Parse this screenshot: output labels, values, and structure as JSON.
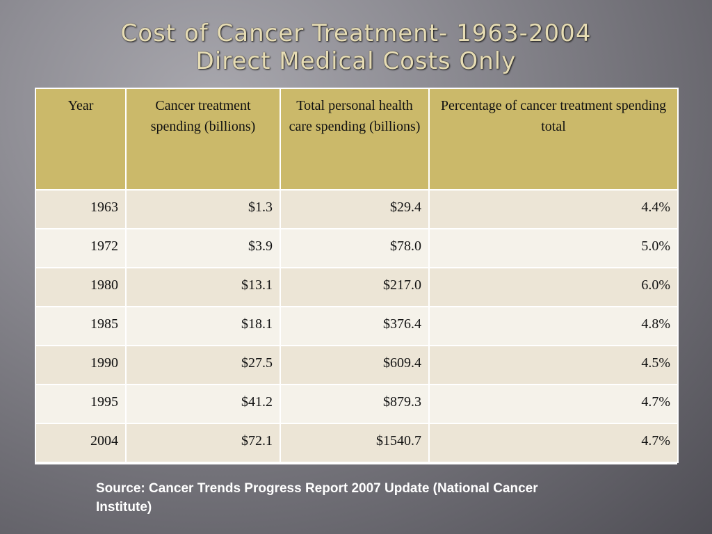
{
  "slide": {
    "title_line1": "Cost of Cancer Treatment- 1963-2004",
    "title_line2": "Direct Medical Costs Only",
    "source": "Source:  Cancer Trends Progress Report 2007 Update (National Cancer Institute)"
  },
  "table": {
    "headers": [
      "Year",
      "Cancer treatment spending (billions)",
      "Total personal health care spending (billions)",
      "Percentage of cancer treatment spending total"
    ],
    "rows": [
      [
        "1963",
        "$1.3",
        "$29.4",
        "4.4%"
      ],
      [
        "1972",
        "$3.9",
        "$78.0",
        "5.0%"
      ],
      [
        "1980",
        "$13.1",
        "$217.0",
        "6.0%"
      ],
      [
        "1985",
        "$18.1",
        "$376.4",
        "4.8%"
      ],
      [
        "1990",
        "$27.5",
        "$609.4",
        "4.5%"
      ],
      [
        "1995",
        "$41.2",
        "$879.3",
        "4.7%"
      ],
      [
        "2004",
        "$72.1",
        "$1540.7",
        "4.7%"
      ]
    ]
  },
  "colors": {
    "header_fill": "#cbb96a",
    "row_odd": "#ece5d6",
    "row_even": "#f5f2ea",
    "title_text": "#e6dcb4"
  }
}
